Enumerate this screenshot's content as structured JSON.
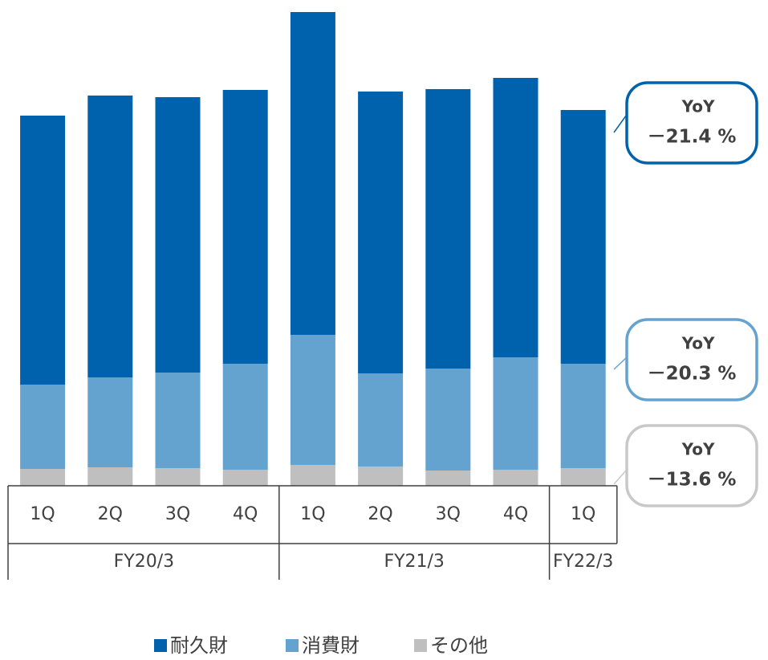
{
  "chart_data": {
    "type": "stacked_bar",
    "categories": [
      {
        "group": "FY20/3",
        "label": "1Q"
      },
      {
        "group": "FY20/3",
        "label": "2Q"
      },
      {
        "group": "FY20/3",
        "label": "3Q"
      },
      {
        "group": "FY20/3",
        "label": "4Q"
      },
      {
        "group": "FY21/3",
        "label": "1Q"
      },
      {
        "group": "FY21/3",
        "label": "2Q"
      },
      {
        "group": "FY21/3",
        "label": "3Q"
      },
      {
        "group": "FY21/3",
        "label": "4Q"
      },
      {
        "group": "FY22/3",
        "label": "1Q"
      }
    ],
    "series": [
      {
        "name": "耐久財",
        "color": "#0062ad",
        "values": [
          335,
          351,
          343,
          341,
          402,
          351,
          348,
          348,
          316
        ],
        "yoy": {
          "title": "YoY",
          "text": "－21.4 %"
        }
      },
      {
        "name": "消費財",
        "color": "#64a2d0",
        "values": [
          105,
          112,
          119,
          132,
          162,
          116,
          127,
          140,
          130
        ],
        "yoy": {
          "title": "YoY",
          "text": "－20.3 %"
        }
      },
      {
        "name": "その他",
        "color": "#bfbfbf",
        "values": [
          21,
          23,
          22,
          20,
          26,
          24,
          19,
          20,
          22
        ],
        "yoy": {
          "title": "YoY",
          "text": "－13.6 %"
        }
      }
    ],
    "legend": "bottom"
  }
}
